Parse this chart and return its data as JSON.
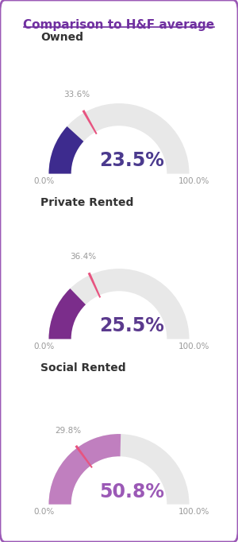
{
  "title": "Comparison to H&F average",
  "title_color": "#7030A0",
  "background_color": "#ffffff",
  "border_color": "#9B59B6",
  "charts": [
    {
      "label": "Owned",
      "ward_value": 23.5,
      "hf_value": 33.6,
      "ward_color": "#3D2B8E",
      "hf_marker_color": "#E75480",
      "bg_arc_color": "#E8E8E8",
      "center_text_color": "#4B3A8E"
    },
    {
      "label": "Private Rented",
      "ward_value": 25.5,
      "hf_value": 36.4,
      "ward_color": "#7B2D8B",
      "hf_marker_color": "#E75480",
      "bg_arc_color": "#E8E8E8",
      "center_text_color": "#5B3A8E"
    },
    {
      "label": "Social Rented",
      "ward_value": 50.8,
      "hf_value": 29.8,
      "ward_color": "#C07FBF",
      "hf_marker_color": "#E75480",
      "bg_arc_color": "#E8E8E8",
      "center_text_color": "#9B59B6"
    }
  ],
  "gauge_min": 0,
  "gauge_max": 100,
  "label_min": "0.0%",
  "label_max": "100.0%"
}
